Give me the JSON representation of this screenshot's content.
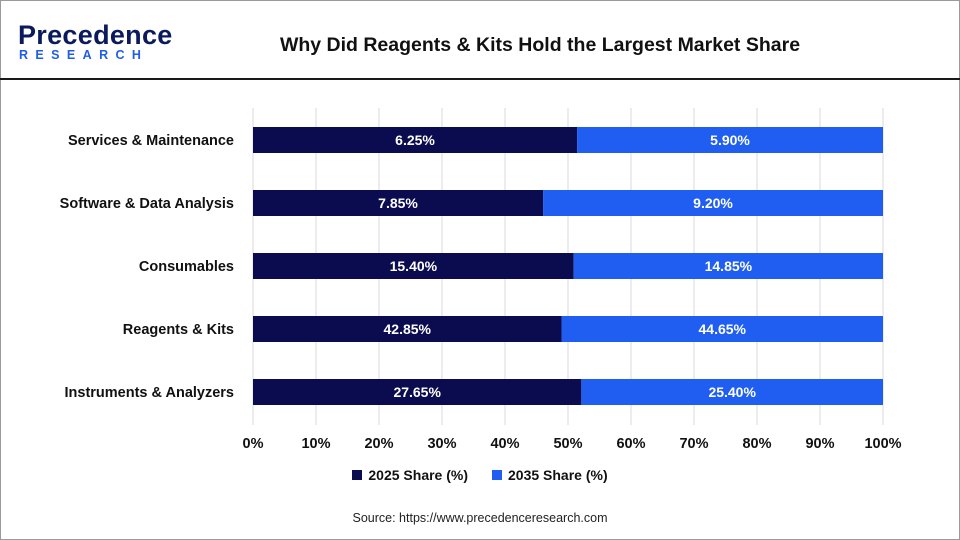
{
  "header": {
    "logo_word": "Precedence",
    "logo_sub": "RESEARCH",
    "title": "Why Did Reagents & Kits Hold the Largest Market Share"
  },
  "colors": {
    "series_2025": "#0b0b4f",
    "series_2035": "#1f5ef0",
    "logo_dark": "#0b1a5c",
    "logo_accent": "#1e5ee8"
  },
  "chart_data": {
    "type": "bar",
    "orientation": "horizontal",
    "stacked": "percent",
    "title": "Why Did Reagents & Kits Hold the Largest Market Share",
    "categories": [
      "Services & Maintenance",
      "Software & Data Analysis",
      "Consumables",
      "Reagents & Kits",
      "Instruments & Analyzers"
    ],
    "series": [
      {
        "name": "2025 Share (%)",
        "values": [
          6.25,
          7.85,
          15.4,
          42.85,
          27.65
        ],
        "labels": [
          "6.25%",
          "7.85%",
          "15.40%",
          "42.85%",
          "27.65%"
        ]
      },
      {
        "name": "2035 Share (%)",
        "values": [
          5.9,
          9.2,
          14.85,
          44.65,
          25.4
        ],
        "labels": [
          "5.90%",
          "9.20%",
          "14.85%",
          "44.65%",
          "25.40%"
        ]
      }
    ],
    "xlim": [
      0,
      100
    ],
    "xticks": [
      "0%",
      "10%",
      "20%",
      "30%",
      "40%",
      "50%",
      "60%",
      "70%",
      "80%",
      "90%",
      "100%"
    ],
    "grid": "vertical",
    "legend_position": "bottom"
  },
  "footer": {
    "source": "Source: https://www.precedenceresearch.com"
  }
}
